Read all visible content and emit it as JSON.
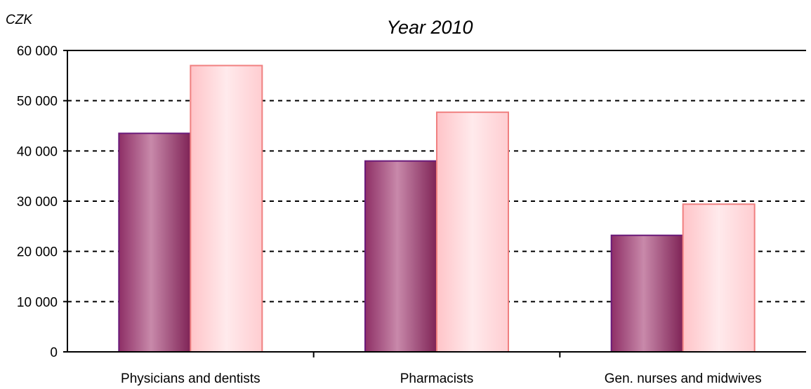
{
  "chart_data": {
    "type": "bar",
    "title": "Year 2010",
    "ylabel": "CZK",
    "xlabel": "",
    "ylim": [
      0,
      60000
    ],
    "yticks": [
      0,
      10000,
      20000,
      30000,
      40000,
      50000,
      60000
    ],
    "ytick_labels": [
      "0",
      "10 000",
      "20 000",
      "30 000",
      "40 000",
      "50 000",
      "60 000"
    ],
    "grid": true,
    "legend": "none",
    "categories": [
      "Physicians and dentists",
      "Pharmacists",
      "Gen. nurses and midwives"
    ],
    "series": [
      {
        "values": [
          43500,
          38000,
          23200
        ],
        "color": "#8e2f66",
        "edge_color": "#6a1a7a"
      },
      {
        "values": [
          57000,
          47700,
          29400
        ],
        "color": "#ffd3d6",
        "edge_color": "#f08080"
      }
    ]
  }
}
